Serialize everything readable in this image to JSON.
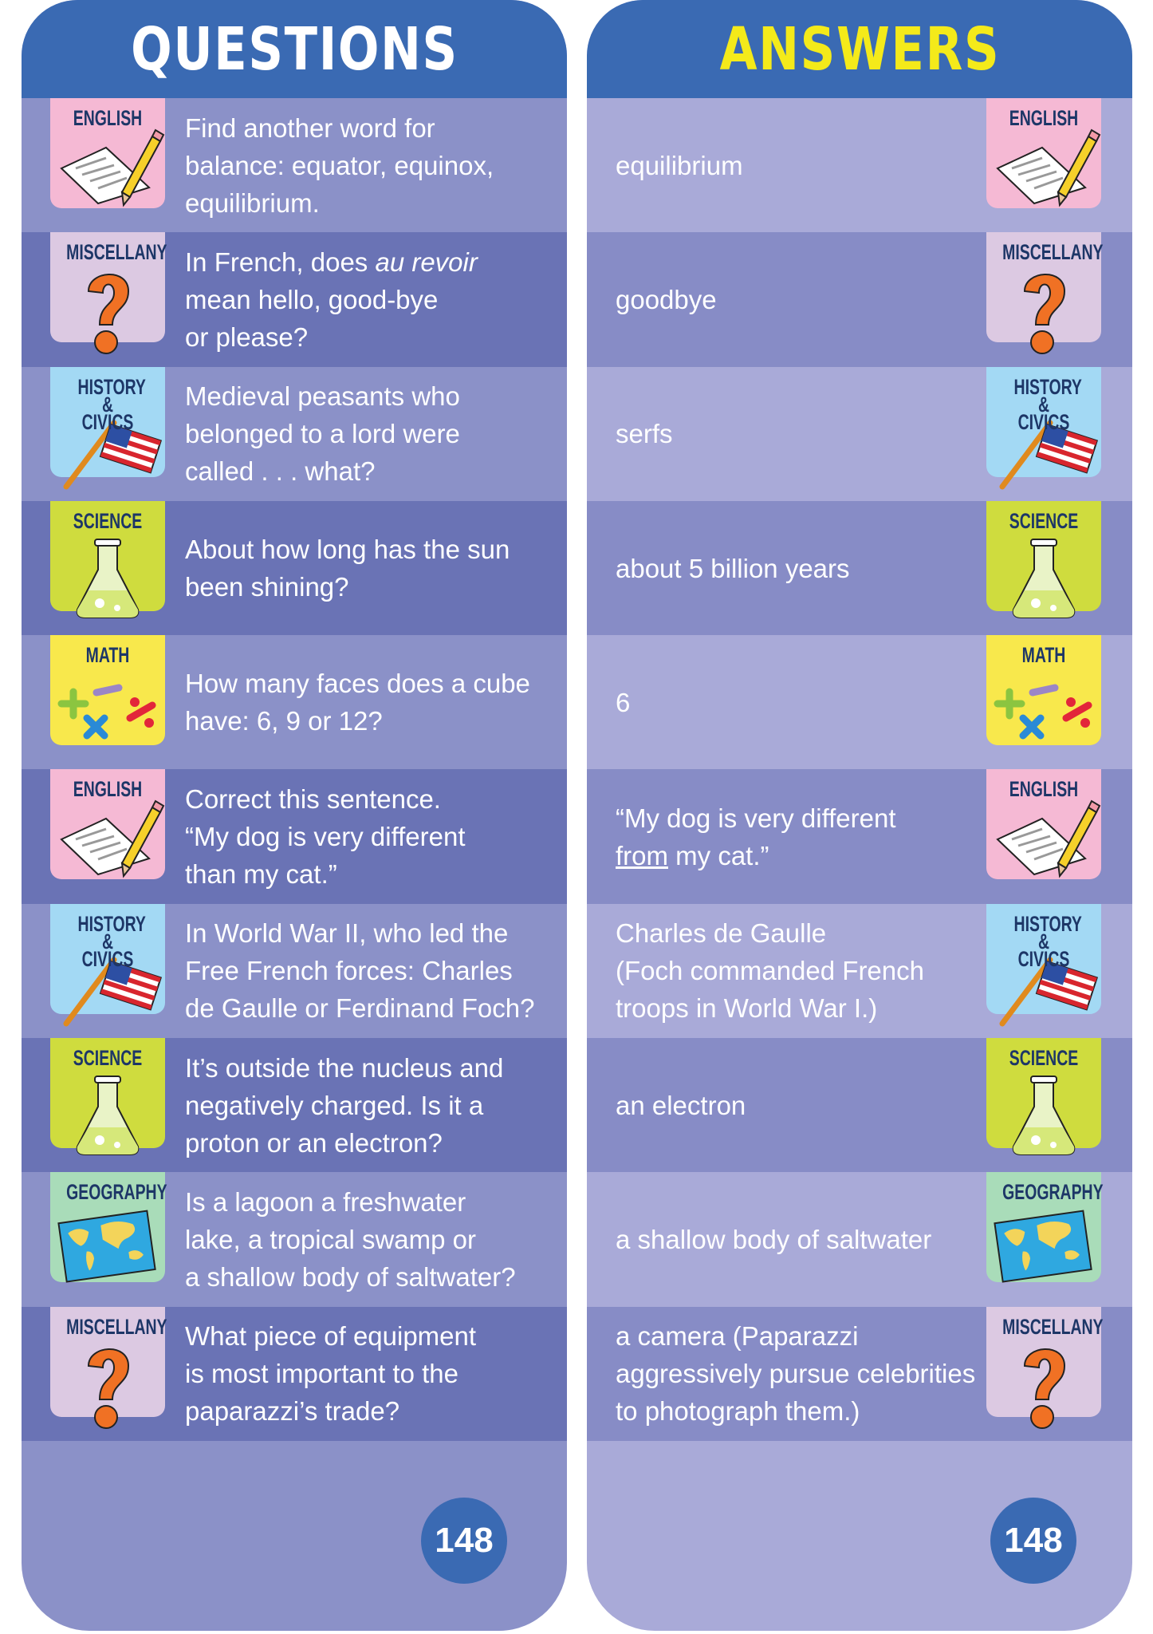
{
  "questions_title": "QUESTIONS",
  "answers_title": "ANSWERS",
  "page_number": "148",
  "colors": {
    "header": "#3a6ab3",
    "answers_title": "#f4ea1a",
    "badge": "#3a6ab3"
  },
  "categories": {
    "english": {
      "label": "ENGLISH",
      "color": "#f5b9d4",
      "icon": "paper-pencil-icon"
    },
    "miscellany": {
      "label": "MISCELLANY",
      "color": "#dcc9e2",
      "icon": "question-mark-icon"
    },
    "history": {
      "label": "HISTORY & CIVICS",
      "color": "#a3d9f4",
      "icon": "us-flag-icon"
    },
    "science": {
      "label": "SCIENCE",
      "color": "#cfdc3e",
      "icon": "flask-icon"
    },
    "math": {
      "label": "MATH",
      "color": "#f8e84c",
      "icon": "math-symbols-icon"
    },
    "geography": {
      "label": "GEOGRAPHY",
      "color": "#a9dcb9",
      "icon": "world-map-icon"
    }
  },
  "items": [
    {
      "category": "english",
      "question": [
        [
          {
            "t": "Find another word for"
          }
        ],
        [
          {
            "t": "balance: equator, equinox,"
          }
        ],
        [
          {
            "t": "equilibrium."
          }
        ]
      ],
      "answer": [
        [
          {
            "t": "equilibrium"
          }
        ]
      ]
    },
    {
      "category": "miscellany",
      "question": [
        [
          {
            "t": "In French, does "
          },
          {
            "t": "au revoir",
            "i": true
          }
        ],
        [
          {
            "t": "mean hello, good-bye"
          }
        ],
        [
          {
            "t": "or please?"
          }
        ]
      ],
      "answer": [
        [
          {
            "t": "goodbye"
          }
        ]
      ]
    },
    {
      "category": "history",
      "question": [
        [
          {
            "t": "Medieval peasants who"
          }
        ],
        [
          {
            "t": "belonged to a lord were"
          }
        ],
        [
          {
            "t": "called . . . what?"
          }
        ]
      ],
      "answer": [
        [
          {
            "t": "serfs"
          }
        ]
      ]
    },
    {
      "category": "science",
      "question": [
        [
          {
            "t": "About how long has the sun"
          }
        ],
        [
          {
            "t": "been shining?"
          }
        ]
      ],
      "answer": [
        [
          {
            "t": "about 5 billion years"
          }
        ]
      ]
    },
    {
      "category": "math",
      "question": [
        [
          {
            "t": "How many faces does a cube"
          }
        ],
        [
          {
            "t": "have: 6, 9 or 12?"
          }
        ]
      ],
      "answer": [
        [
          {
            "t": "6"
          }
        ]
      ]
    },
    {
      "category": "english",
      "question": [
        [
          {
            "t": "Correct this sentence."
          }
        ],
        [
          {
            "t": "“My dog is very different"
          }
        ],
        [
          {
            "t": "than my cat.”"
          }
        ]
      ],
      "answer": [
        [
          {
            "t": "“My dog is very different"
          }
        ],
        [
          {
            "t": "from",
            "u": true
          },
          {
            "t": " my cat.”"
          }
        ]
      ]
    },
    {
      "category": "history",
      "question": [
        [
          {
            "t": "In World War II, who led the"
          }
        ],
        [
          {
            "t": "Free French forces: Charles"
          }
        ],
        [
          {
            "t": "de Gaulle or Ferdinand Foch?"
          }
        ]
      ],
      "answer": [
        [
          {
            "t": "Charles de Gaulle"
          }
        ],
        [
          {
            "t": "(Foch commanded French"
          }
        ],
        [
          {
            "t": "troops in World War I.)"
          }
        ]
      ]
    },
    {
      "category": "science",
      "question": [
        [
          {
            "t": "It’s outside the nucleus and"
          }
        ],
        [
          {
            "t": "negatively charged. Is it a"
          }
        ],
        [
          {
            "t": "proton or an electron?"
          }
        ]
      ],
      "answer": [
        [
          {
            "t": "an electron"
          }
        ]
      ]
    },
    {
      "category": "geography",
      "question": [
        [
          {
            "t": "Is a lagoon a freshwater"
          }
        ],
        [
          {
            "t": "lake, a tropical swamp or"
          }
        ],
        [
          {
            "t": "a shallow body of saltwater?"
          }
        ]
      ],
      "answer": [
        [
          {
            "t": "a shallow body of saltwater"
          }
        ]
      ]
    },
    {
      "category": "miscellany",
      "question": [
        [
          {
            "t": "What piece of equipment"
          }
        ],
        [
          {
            "t": "is most important to the"
          }
        ],
        [
          {
            "t": "paparazzi’s trade?"
          }
        ]
      ],
      "answer": [
        [
          {
            "t": "a camera (Paparazzi"
          }
        ],
        [
          {
            "t": "aggressively pursue celebrities"
          }
        ],
        [
          {
            "t": "to photograph them.)"
          }
        ]
      ]
    }
  ]
}
